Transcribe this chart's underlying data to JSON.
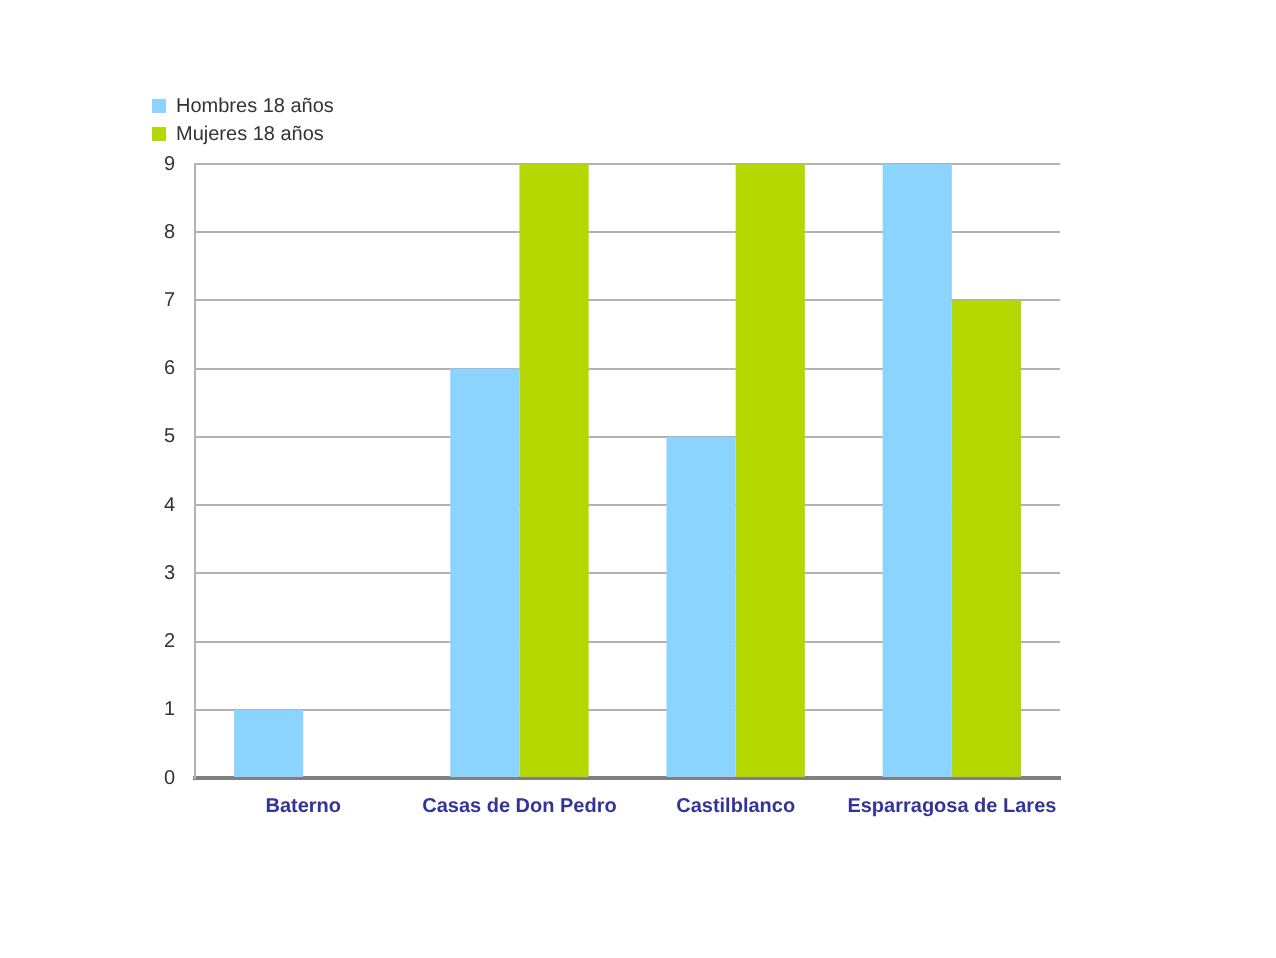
{
  "chart_data": {
    "type": "bar",
    "categories": [
      "Baterno",
      "Casas de Don Pedro",
      "Castilblanco",
      "Esparragosa de Lares"
    ],
    "series": [
      {
        "name": "Hombres 18 años",
        "color": "#8ad4ff",
        "values": [
          1,
          6,
          5,
          9
        ]
      },
      {
        "name": "Mujeres 18 años",
        "color": "#b4d800",
        "values": [
          null,
          9,
          9,
          7
        ]
      }
    ],
    "ylim": [
      0,
      9
    ],
    "yticks": [
      0,
      1,
      2,
      3,
      4,
      5,
      6,
      7,
      8,
      9
    ],
    "grid": "y",
    "legend": "top left"
  }
}
